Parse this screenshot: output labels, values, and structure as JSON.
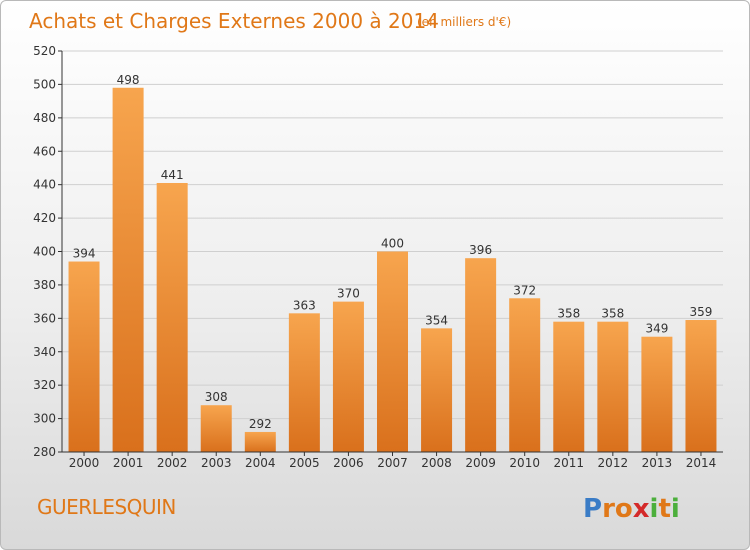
{
  "chart_data": {
    "type": "bar",
    "title": "Achats et Charges Externes 2000 à 2014",
    "subtitle": "(en milliers d'€)",
    "categories": [
      "2000",
      "2001",
      "2002",
      "2003",
      "2004",
      "2005",
      "2006",
      "2007",
      "2008",
      "2009",
      "2010",
      "2011",
      "2012",
      "2013",
      "2014"
    ],
    "values": [
      394,
      498,
      441,
      308,
      292,
      363,
      370,
      400,
      354,
      396,
      372,
      358,
      358,
      349,
      359
    ],
    "ylim": [
      280,
      520
    ],
    "yticks": [
      280,
      300,
      320,
      340,
      360,
      380,
      400,
      420,
      440,
      460,
      480,
      500,
      520
    ],
    "grid": true,
    "bar_color": "#f0932f",
    "xlabel": "",
    "ylabel": ""
  },
  "footer": {
    "commune": "GUERLESQUIN",
    "logo_letters": [
      "P",
      "r",
      "o",
      "x",
      "i",
      "t",
      "i"
    ],
    "logo_colors": [
      "#3a7cc6",
      "#e07818",
      "#e07818",
      "#d42a2a",
      "#4caf3c",
      "#e07818",
      "#4caf3c"
    ]
  },
  "colors": {
    "accent": "#e07818",
    "grid": "#cfcfcf",
    "axis": "#333333"
  }
}
